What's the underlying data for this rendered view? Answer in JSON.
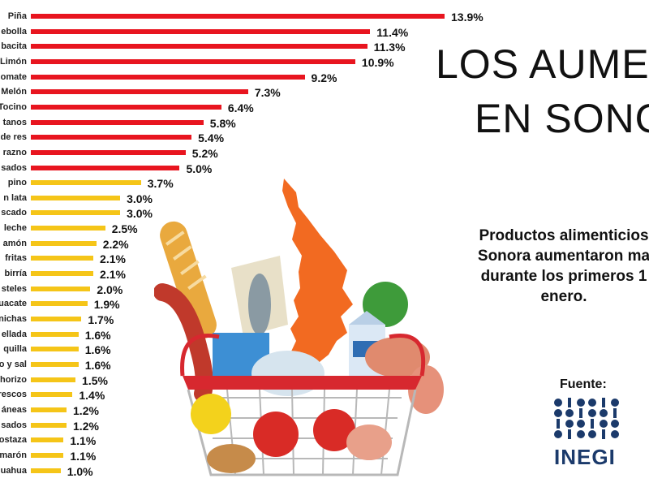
{
  "colors": {
    "top": "#e8151f",
    "rest": "#f5c518",
    "sonora": "#f26a21",
    "logo": "#1b3a6b"
  },
  "title_line1": "LOS AUME",
  "title_line2": "EN SONO",
  "subtitle_lines": [
    "Productos alimenticios",
    "Sonora aumentaron ma",
    "durante los primeros 1",
    "enero."
  ],
  "source_label": "Fuente:",
  "logo_text": "INEGI",
  "chart_data": {
    "type": "bar",
    "orientation": "horizontal",
    "categories": [
      "Piña",
      "ebolla",
      "bacita",
      "Limón",
      "omate",
      "Melón",
      "Tocino",
      "tanos",
      "de res",
      "razno",
      "sados",
      "pino",
      "n lata",
      "scado",
      "leche",
      "amón",
      "fritas",
      "birría",
      "steles",
      "uacate",
      "nichas",
      "ellada",
      "quilla",
      "o y sal",
      "horizo",
      "rescos",
      "áneas",
      "sados",
      "ostaza",
      "marón",
      "uahua"
    ],
    "values": [
      13.9,
      11.4,
      11.3,
      10.9,
      9.2,
      7.3,
      6.4,
      5.8,
      5.4,
      5.2,
      5.0,
      3.7,
      3.0,
      3.0,
      2.5,
      2.2,
      2.1,
      2.1,
      2.0,
      1.9,
      1.7,
      1.6,
      1.6,
      1.6,
      1.5,
      1.4,
      1.2,
      1.2,
      1.1,
      1.1,
      1.0
    ],
    "value_labels": [
      "13.9%",
      "11.4%",
      "11.3%",
      "10.9%",
      "9.2%",
      "7.3%",
      "6.4%",
      "5.8%",
      "5.4%",
      "5.2%",
      "5.0%",
      "3.7%",
      "3.0%",
      "3.0%",
      "2.5%",
      "2.2%",
      "2.1%",
      "2.1%",
      "2.0%",
      "1.9%",
      "1.7%",
      "1.6%",
      "1.6%",
      "1.6%",
      "1.5%",
      "1.4%",
      "1.2%",
      "1.2%",
      "1.1%",
      "1.1%",
      "1.0%"
    ],
    "red_count": 11,
    "xlim": [
      0,
      13.9
    ],
    "grid": false,
    "legend": "none"
  }
}
